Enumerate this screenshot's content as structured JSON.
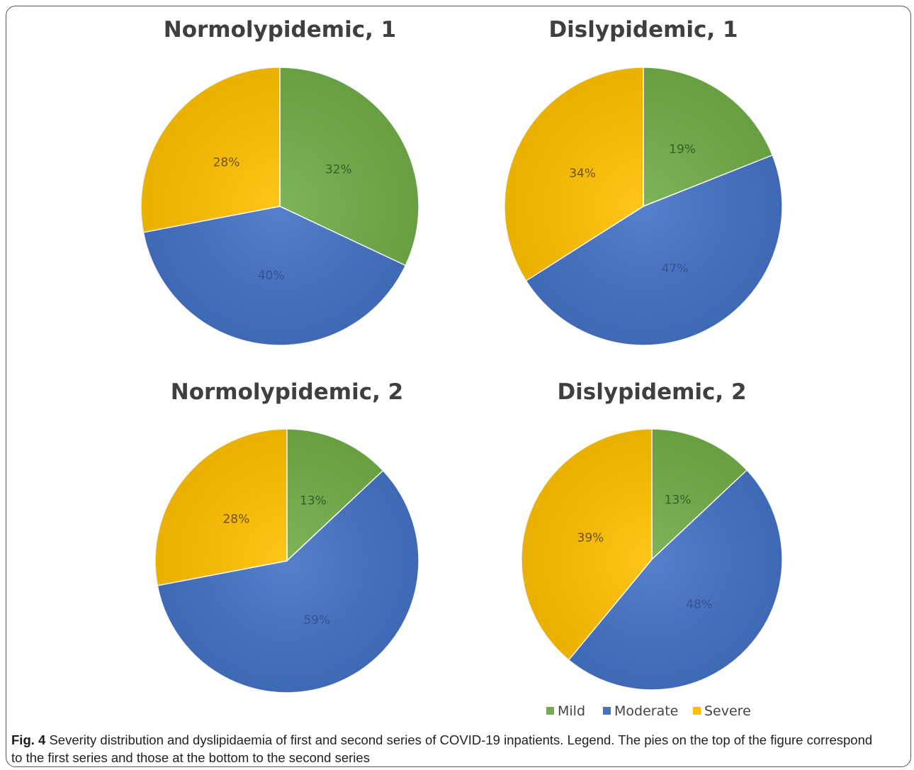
{
  "chart_data": [
    {
      "type": "pie",
      "title": "Normolypidemic, 1",
      "categories": [
        "Mild",
        "Moderate",
        "Severe"
      ],
      "values": [
        32,
        40,
        28
      ],
      "labels": [
        "32%",
        "40%",
        "28%"
      ]
    },
    {
      "type": "pie",
      "title": "Dislypidemic, 1",
      "categories": [
        "Mild",
        "Moderate",
        "Severe"
      ],
      "values": [
        19,
        47,
        34
      ],
      "labels": [
        "19%",
        "47%",
        "34%"
      ]
    },
    {
      "type": "pie",
      "title": "Normolypidemic, 2",
      "categories": [
        "Mild",
        "Moderate",
        "Severe"
      ],
      "values": [
        13,
        59,
        28
      ],
      "labels": [
        "13%",
        "59%",
        "28%"
      ]
    },
    {
      "type": "pie",
      "title": "Dislypidemic, 2",
      "categories": [
        "Mild",
        "Moderate",
        "Severe"
      ],
      "values": [
        13,
        48,
        39
      ],
      "labels": [
        "13%",
        "48%",
        "39%"
      ]
    }
  ],
  "legend": {
    "placement": "bottom-right",
    "items": [
      {
        "name": "Mild",
        "color": "#70ad47"
      },
      {
        "name": "Moderate",
        "color": "#4472c4"
      },
      {
        "name": "Severe",
        "color": "#ffc000"
      }
    ]
  },
  "colors": {
    "Mild": "#70ad47",
    "Moderate": "#4472c4",
    "Severe": "#ffc000"
  },
  "caption": {
    "fig_label": "Fig. 4",
    "text": "Severity distribution and dyslipidaemia of first and second series of COVID-19 inpatients. Legend. The pies on the top of the figure correspond to the first series and those at the bottom to the second series"
  }
}
